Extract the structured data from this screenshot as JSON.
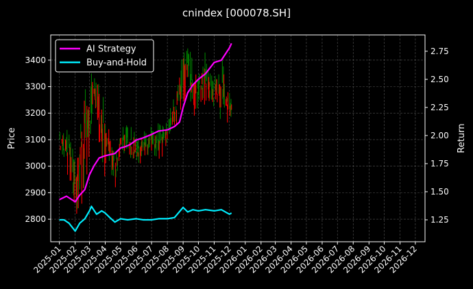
{
  "chart_data": {
    "type": "line",
    "title": "cnindex [000078.SH]",
    "ylabel_left": "Price",
    "ylabel_right": "Return",
    "xlabel": "",
    "grid": true,
    "legend_position": "upper-left",
    "x_ticks": [
      "2025-01",
      "2025-02",
      "2025-03",
      "2025-04",
      "2025-05",
      "2025-06",
      "2025-07",
      "2025-08",
      "2025-09",
      "2025-10",
      "2025-11",
      "2025-12",
      "2026-01",
      "2026-02",
      "2026-03",
      "2026-04",
      "2026-05",
      "2026-06",
      "2026-07",
      "2026-08",
      "2026-09",
      "2026-10",
      "2026-11",
      "2026-12"
    ],
    "x_range": [
      "2024-12-15",
      "2026-12-20"
    ],
    "y_left": {
      "ticks": [
        2800,
        2900,
        3000,
        3100,
        3200,
        3300,
        3400
      ],
      "range": [
        2715,
        3495
      ]
    },
    "y_right": {
      "ticks": [
        1.25,
        1.5,
        1.75,
        2.0,
        2.25,
        2.5,
        2.75
      ],
      "ticklabels": [
        "1.25",
        "1.50",
        "1.75",
        "2.00",
        "2.25",
        "2.50",
        "2.75"
      ],
      "range": [
        1.055,
        2.895
      ]
    },
    "price_range": {
      "axis": "left",
      "up_color": "#008000",
      "down_color": "#ff0000",
      "dates": [
        "2025-01-01",
        "2025-01-15",
        "2025-02-01",
        "2025-02-15",
        "2025-03-01",
        "2025-03-10",
        "2025-03-20",
        "2025-04-01",
        "2025-04-10",
        "2025-04-20",
        "2025-05-01",
        "2025-05-15",
        "2025-06-01",
        "2025-06-15",
        "2025-07-01",
        "2025-07-15",
        "2025-08-01",
        "2025-08-15",
        "2025-09-01",
        "2025-09-10",
        "2025-09-20",
        "2025-10-01",
        "2025-10-15",
        "2025-11-01",
        "2025-11-15",
        "2025-12-01",
        "2025-12-05"
      ],
      "low": [
        3060,
        3000,
        2780,
        2880,
        3000,
        3250,
        3050,
        3000,
        3020,
        2920,
        3060,
        3040,
        3000,
        3040,
        3060,
        3020,
        3080,
        3140,
        3220,
        3310,
        3200,
        3240,
        3230,
        3220,
        3200,
        3140,
        3180
      ],
      "high": [
        3130,
        3130,
        3080,
        3240,
        3300,
        3380,
        3300,
        3220,
        3150,
        3070,
        3130,
        3150,
        3110,
        3120,
        3140,
        3150,
        3160,
        3260,
        3420,
        3460,
        3380,
        3340,
        3420,
        3320,
        3390,
        3280,
        3260
      ]
    },
    "series": [
      {
        "name": "AI Strategy",
        "axis": "right",
        "color": "#ff00ff",
        "x": [
          "2025-01-01",
          "2025-01-15",
          "2025-02-01",
          "2025-02-10",
          "2025-02-20",
          "2025-03-01",
          "2025-03-10",
          "2025-03-20",
          "2025-04-01",
          "2025-04-10",
          "2025-04-20",
          "2025-05-01",
          "2025-05-10",
          "2025-05-20",
          "2025-06-01",
          "2025-06-15",
          "2025-07-01",
          "2025-07-15",
          "2025-08-01",
          "2025-08-15",
          "2025-08-25",
          "2025-09-01",
          "2025-09-10",
          "2025-09-20",
          "2025-10-01",
          "2025-10-15",
          "2025-11-01",
          "2025-11-15",
          "2025-12-01",
          "2025-12-05"
        ],
        "y": [
          1.43,
          1.46,
          1.41,
          1.47,
          1.52,
          1.65,
          1.73,
          1.8,
          1.82,
          1.83,
          1.84,
          1.89,
          1.9,
          1.92,
          1.96,
          1.98,
          2.01,
          2.04,
          2.05,
          2.08,
          2.12,
          2.25,
          2.38,
          2.45,
          2.5,
          2.55,
          2.65,
          2.67,
          2.78,
          2.82
        ]
      },
      {
        "name": "Buy-and-Hold",
        "axis": "right",
        "color": "#00eeff",
        "x": [
          "2025-01-01",
          "2025-01-10",
          "2025-01-20",
          "2025-02-01",
          "2025-02-10",
          "2025-02-20",
          "2025-03-01",
          "2025-03-05",
          "2025-03-15",
          "2025-03-25",
          "2025-04-01",
          "2025-04-10",
          "2025-04-20",
          "2025-05-01",
          "2025-05-15",
          "2025-06-01",
          "2025-06-15",
          "2025-07-01",
          "2025-07-15",
          "2025-08-01",
          "2025-08-15",
          "2025-09-01",
          "2025-09-10",
          "2025-09-20",
          "2025-10-01",
          "2025-10-15",
          "2025-11-01",
          "2025-11-15",
          "2025-12-01",
          "2025-12-05"
        ],
        "y": [
          1.25,
          1.25,
          1.22,
          1.15,
          1.22,
          1.26,
          1.33,
          1.37,
          1.3,
          1.33,
          1.31,
          1.27,
          1.23,
          1.26,
          1.25,
          1.26,
          1.25,
          1.25,
          1.26,
          1.26,
          1.27,
          1.36,
          1.32,
          1.34,
          1.33,
          1.34,
          1.33,
          1.34,
          1.3,
          1.31
        ]
      }
    ]
  }
}
